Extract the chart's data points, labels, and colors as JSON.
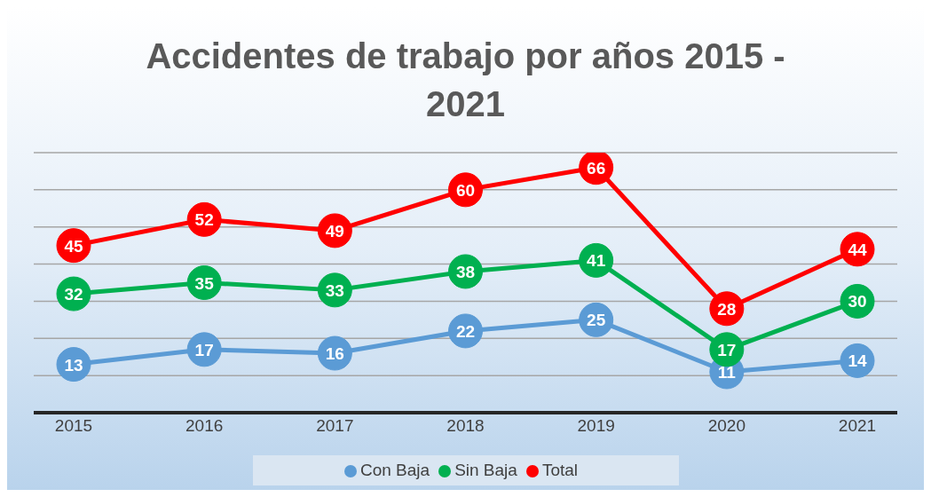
{
  "chart_data": {
    "type": "line",
    "title": "Accidentes de trabajo por años 2015 - 2021",
    "categories": [
      "2015",
      "2016",
      "2017",
      "2018",
      "2019",
      "2020",
      "2021"
    ],
    "series": [
      {
        "name": "Con Baja",
        "color": "#5b9bd5",
        "values": [
          13,
          17,
          16,
          22,
          25,
          11,
          14
        ]
      },
      {
        "name": "Sin Baja",
        "color": "#00b050",
        "values": [
          32,
          35,
          33,
          38,
          41,
          17,
          30
        ]
      },
      {
        "name": "Total",
        "color": "#ff0000",
        "values": [
          45,
          52,
          49,
          60,
          66,
          28,
          44
        ]
      }
    ],
    "ylim": [
      0,
      70
    ],
    "yticks": [
      {
        "value": 0,
        "label": null
      },
      {
        "value": 10,
        "label": null
      },
      {
        "value": 20,
        "label": null
      },
      {
        "value": 30,
        "label": null
      },
      {
        "value": 40,
        "label": null
      },
      {
        "value": 50,
        "label": null
      },
      {
        "value": 60,
        "label": null
      },
      {
        "value": 70,
        "label": null
      }
    ],
    "tick_labels": "x",
    "grid": "y",
    "legend": "bottom",
    "marker": "circle",
    "line_style": "solid",
    "data_labels": true
  }
}
